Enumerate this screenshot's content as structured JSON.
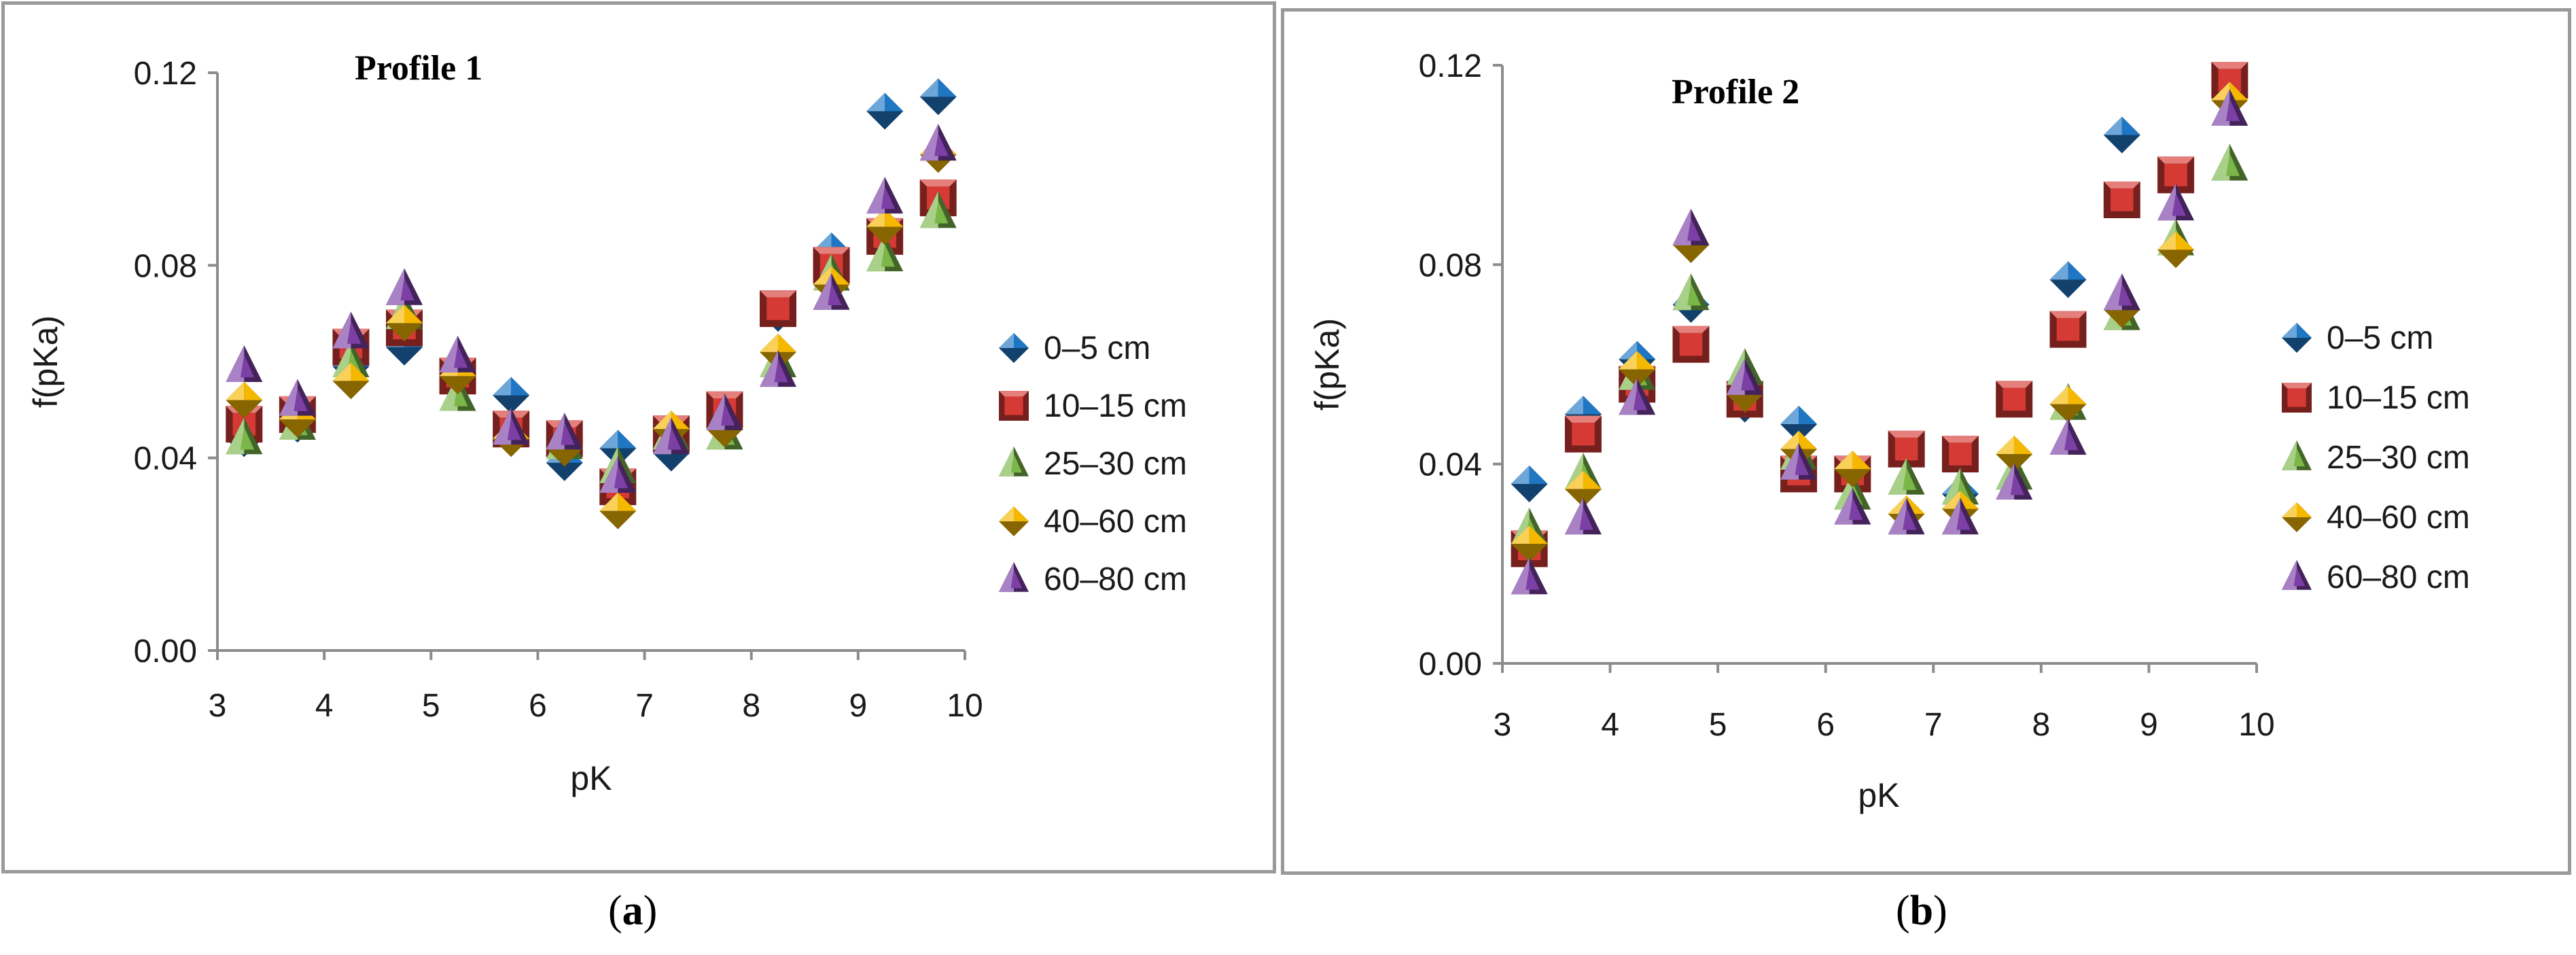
{
  "chart_data": [
    {
      "type": "scatter",
      "title": "Profile 1",
      "panel_label": "a",
      "xlabel": "pK",
      "ylabel": "f(pKa)",
      "xlim": [
        3,
        10
      ],
      "ylim": [
        0,
        0.12
      ],
      "xticks": [
        "3",
        "4",
        "5",
        "6",
        "7",
        "8",
        "9",
        "10"
      ],
      "yticks": [
        "0.00",
        "0.04",
        "0.08",
        "0.12"
      ],
      "x": [
        3.25,
        3.75,
        4.25,
        4.75,
        5.25,
        5.75,
        6.25,
        6.75,
        7.25,
        7.75,
        8.25,
        8.75,
        9.25,
        9.75
      ],
      "series": [
        {
          "name": "0–5 cm",
          "marker": "diamond",
          "color": "#1f77c4",
          "values": [
            0.044,
            0.047,
            0.059,
            0.063,
            0.056,
            0.053,
            0.039,
            0.042,
            0.041,
            0.049,
            0.07,
            0.083,
            0.112,
            0.115
          ]
        },
        {
          "name": "10–15 cm",
          "marker": "square",
          "color": "#d63a34",
          "values": [
            0.047,
            0.049,
            0.063,
            0.067,
            0.057,
            0.046,
            0.044,
            0.034,
            0.045,
            0.05,
            0.071,
            0.08,
            0.086,
            0.094
          ]
        },
        {
          "name": "25–30 cm",
          "marker": "triangle",
          "color": "#7ab648",
          "values": [
            0.044,
            0.047,
            0.06,
            0.07,
            0.053,
            0.046,
            0.043,
            0.038,
            0.045,
            0.045,
            0.06,
            0.078,
            0.082,
            0.091
          ]
        },
        {
          "name": "40–60 cm",
          "marker": "diamond",
          "color": "#f5b800",
          "values": [
            0.052,
            0.048,
            0.056,
            0.068,
            0.057,
            0.044,
            0.042,
            0.029,
            0.046,
            0.046,
            0.062,
            0.076,
            0.088,
            0.103
          ]
        },
        {
          "name": "60–80 cm",
          "marker": "triangle",
          "color": "#7b3fa5",
          "values": [
            0.059,
            0.052,
            0.066,
            0.075,
            0.061,
            0.046,
            0.045,
            0.036,
            0.044,
            0.049,
            0.058,
            0.074,
            0.094,
            0.105
          ]
        }
      ]
    },
    {
      "type": "scatter",
      "title": "Profile 2",
      "panel_label": "b",
      "xlabel": "pK",
      "ylabel": "f(pKa)",
      "xlim": [
        3,
        10
      ],
      "ylim": [
        0,
        0.12
      ],
      "xticks": [
        "3",
        "4",
        "5",
        "6",
        "7",
        "8",
        "9",
        "10"
      ],
      "yticks": [
        "0.00",
        "0.04",
        "0.08",
        "0.12"
      ],
      "x": [
        3.25,
        3.75,
        4.25,
        4.75,
        5.25,
        5.75,
        6.25,
        6.75,
        7.25,
        7.75,
        8.25,
        8.75,
        9.25,
        9.75
      ],
      "series": [
        {
          "name": "0–5 cm",
          "marker": "diamond",
          "color": "#1f77c4",
          "values": [
            0.036,
            0.05,
            0.061,
            0.072,
            0.052,
            0.048,
            0.038,
            0.043,
            0.034,
            0.053,
            0.077,
            0.106,
            0.098,
            0.114
          ]
        },
        {
          "name": "10–15 cm",
          "marker": "square",
          "color": "#d63a34",
          "values": [
            0.023,
            0.046,
            0.056,
            0.064,
            0.053,
            0.038,
            0.038,
            0.043,
            0.042,
            0.053,
            0.067,
            0.093,
            0.098,
            0.117
          ]
        },
        {
          "name": "25–30 cm",
          "marker": "triangle",
          "color": "#7ab648",
          "values": [
            0.027,
            0.038,
            0.058,
            0.074,
            0.059,
            0.042,
            0.034,
            0.037,
            0.035,
            0.038,
            0.052,
            0.07,
            0.085,
            0.1
          ]
        },
        {
          "name": "40–60 cm",
          "marker": "diamond",
          "color": "#f5b800",
          "values": [
            0.024,
            0.035,
            0.059,
            0.084,
            0.054,
            0.043,
            0.039,
            0.03,
            0.031,
            0.042,
            0.052,
            0.071,
            0.083,
            0.113
          ]
        },
        {
          "name": "60–80 cm",
          "marker": "triangle",
          "color": "#7b3fa5",
          "values": [
            0.017,
            0.029,
            0.053,
            0.087,
            0.057,
            0.04,
            0.031,
            0.029,
            0.029,
            0.036,
            0.045,
            0.074,
            0.092,
            0.111
          ]
        }
      ]
    }
  ]
}
